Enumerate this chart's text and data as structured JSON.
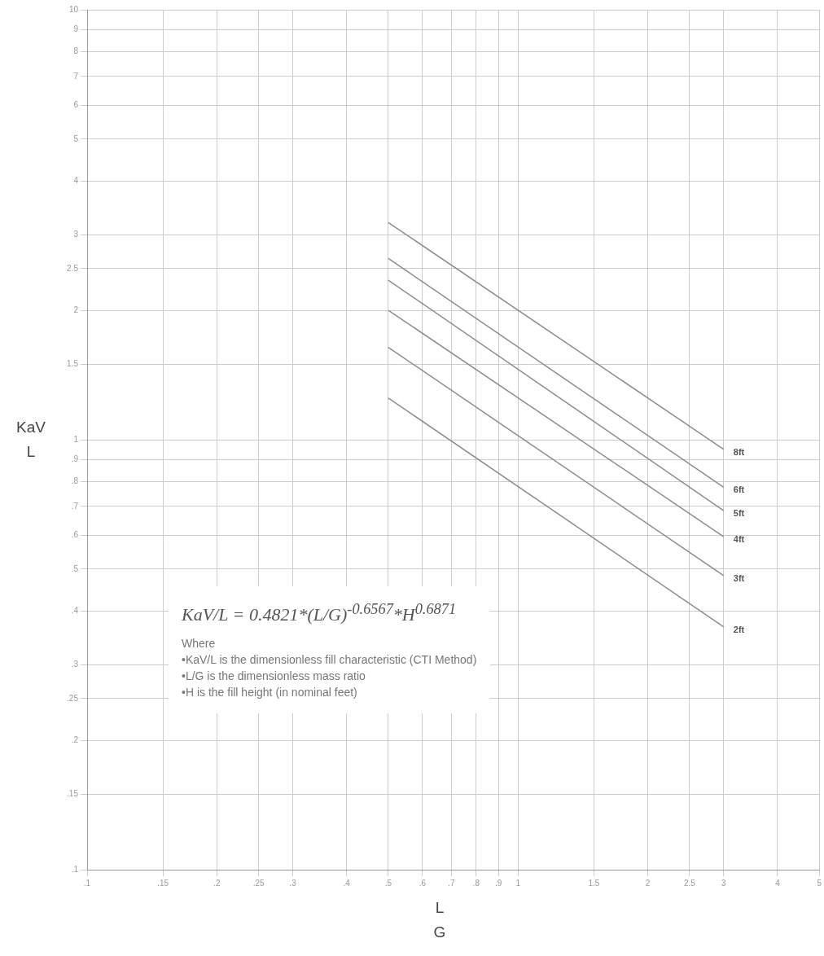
{
  "chart_data": {
    "type": "line",
    "xlabel": "L\nG",
    "ylabel": "KaV\nL",
    "log": "xy",
    "grid": true,
    "legend": false,
    "marker": "none",
    "line_style": "solid",
    "xlim": [
      0.1,
      5
    ],
    "ylim": [
      0.1,
      10
    ],
    "xticks": [
      {
        "value": 0.1,
        "label": ".1"
      },
      {
        "value": 0.15,
        "label": ".15"
      },
      {
        "value": 0.2,
        "label": ".2"
      },
      {
        "value": 0.25,
        "label": ".25"
      },
      {
        "value": 0.3,
        "label": ".3"
      },
      {
        "value": 0.4,
        "label": ".4"
      },
      {
        "value": 0.5,
        "label": ".5"
      },
      {
        "value": 0.6,
        "label": ".6"
      },
      {
        "value": 0.7,
        "label": ".7"
      },
      {
        "value": 0.8,
        "label": ".8"
      },
      {
        "value": 0.9,
        "label": ".9"
      },
      1,
      1.5,
      2,
      2.5,
      3,
      4,
      5
    ],
    "yticks": [
      {
        "value": 0.1,
        "label": ".1"
      },
      {
        "value": 0.15,
        "label": ".15"
      },
      {
        "value": 0.2,
        "label": ".2"
      },
      {
        "value": 0.25,
        "label": ".25"
      },
      {
        "value": 0.3,
        "label": ".3"
      },
      {
        "value": 0.4,
        "label": ".4"
      },
      {
        "value": 0.5,
        "label": ".5"
      },
      {
        "value": 0.6,
        "label": ".6"
      },
      {
        "value": 0.7,
        "label": ".7"
      },
      {
        "value": 0.8,
        "label": ".8"
      },
      {
        "value": 0.9,
        "label": ".9"
      },
      1,
      1.5,
      2,
      2.5,
      3,
      4,
      5,
      6,
      7,
      8,
      9,
      10
    ],
    "x": [
      0.5,
      3
    ],
    "series": [
      {
        "name": "8ft",
        "color": "#8c8c8c",
        "values": [
          3.2,
          0.95
        ]
      },
      {
        "name": "6ft",
        "color": "#8c8c8c",
        "values": [
          2.64,
          0.775
        ]
      },
      {
        "name": "5ft",
        "color": "#8c8c8c",
        "values": [
          2.35,
          0.684
        ]
      },
      {
        "name": "4ft",
        "color": "#8c8c8c",
        "values": [
          2.0,
          0.595
        ]
      },
      {
        "name": "3ft",
        "color": "#8c8c8c",
        "values": [
          1.64,
          0.483
        ]
      },
      {
        "name": "2ft",
        "color": "#8c8c8c",
        "values": [
          1.25,
          0.367
        ]
      }
    ],
    "annotations": [
      "KaV/L = 0.4821*(L/G)$^{-0.6567}$*H$^{0.6871}$",
      "Where",
      "•KaV/L is the dimensionless fill characteristic (CTI Method)",
      "•L/G is the dimensionless mass ratio",
      "•H is the fill height (in nominal feet)"
    ]
  }
}
